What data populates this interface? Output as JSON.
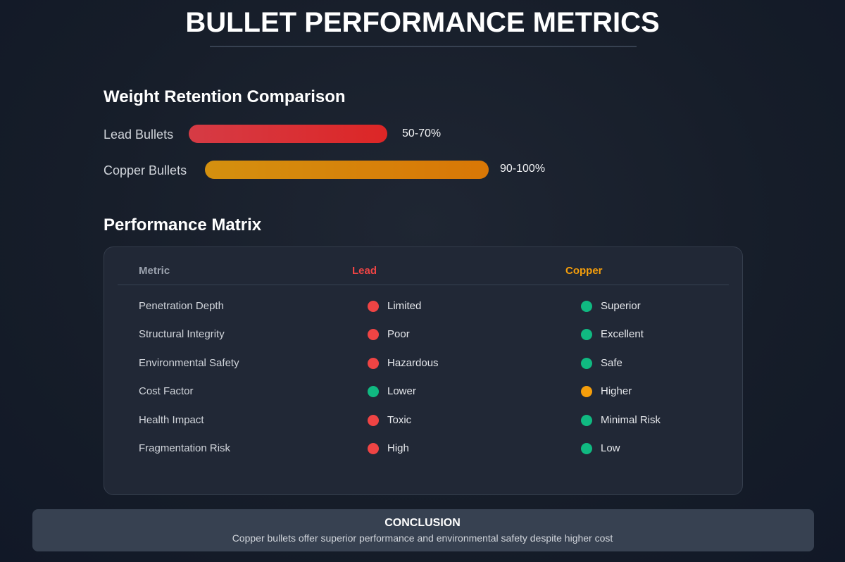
{
  "header": {
    "title": "BULLET PERFORMANCE METRICS"
  },
  "retention": {
    "title": "Weight Retention Comparison",
    "rows": [
      {
        "label": "Lead Bullets",
        "value": "50-70%"
      },
      {
        "label": "Copper Bullets",
        "value": "90-100%"
      }
    ]
  },
  "matrix": {
    "title": "Performance Matrix",
    "columns": [
      "Metric",
      "Lead",
      "Copper"
    ],
    "rows": [
      [
        "Penetration Depth",
        "Limited",
        "Superior"
      ],
      [
        "Structural Integrity",
        "Poor",
        "Excellent"
      ],
      [
        "Environmental Safety",
        "Hazardous",
        "Safe"
      ],
      [
        "Cost Factor",
        "Lower",
        "Higher"
      ],
      [
        "Health Impact",
        "Toxic",
        "Minimal Risk"
      ],
      [
        "Fragmentation Risk",
        "High",
        "Low"
      ]
    ]
  },
  "conclusion": {
    "title": "CONCLUSION",
    "text": "Copper bullets offer superior performance and environmental safety despite higher cost"
  }
}
